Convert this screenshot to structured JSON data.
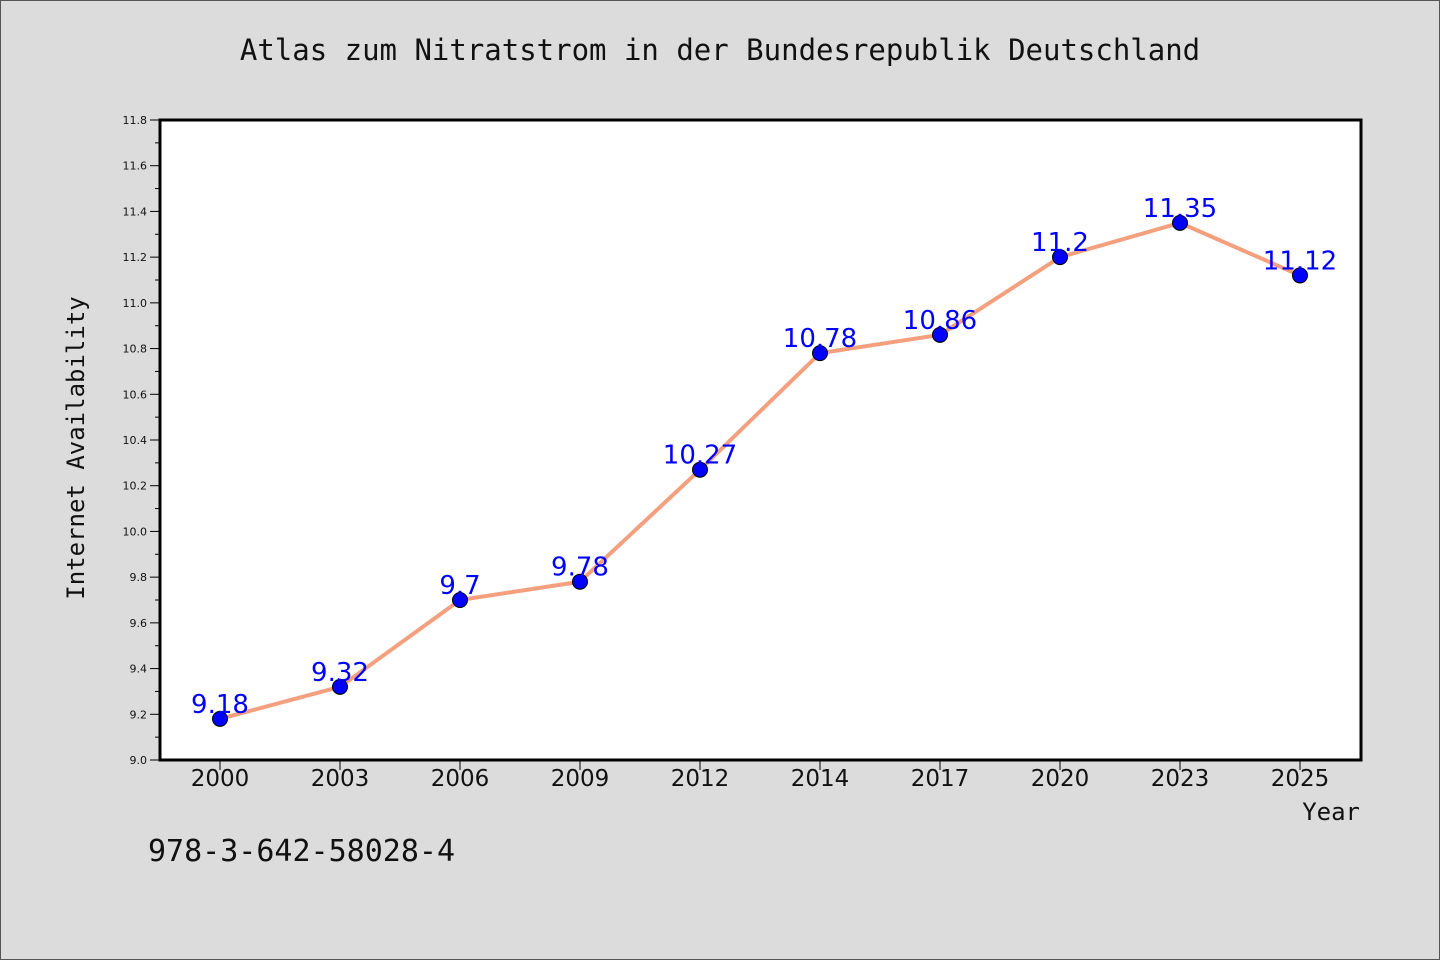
{
  "page": {
    "title": "Atlas zum Nitratstrom in der Bundesrepublik Deutschland",
    "footer": "978-3-642-58028-4"
  },
  "chart_data": {
    "type": "line",
    "title": "Atlas zum Nitratstrom in der Bundesrepublik Deutschland",
    "xlabel": "Year",
    "ylabel": "Internet Availability",
    "categories": [
      "2000",
      "2003",
      "2006",
      "2009",
      "2012",
      "2014",
      "2017",
      "2020",
      "2023",
      "2025"
    ],
    "series": [
      {
        "values": [
          9.18,
          9.32,
          9.7,
          9.78,
          10.27,
          10.78,
          10.86,
          11.2,
          11.35,
          11.12
        ],
        "data_labels": [
          "9.18",
          "9.32",
          "9.7",
          "9.78",
          "10.27",
          "10.78",
          "10.86",
          "11.2",
          "11.35",
          "11.12"
        ]
      }
    ],
    "ylim": [
      9.0,
      11.8
    ],
    "y_ticks": [
      "9.0",
      "9.2",
      "9.4",
      "9.6",
      "9.8",
      "10.0",
      "10.2",
      "10.4",
      "10.6",
      "10.8",
      "11.0",
      "11.2",
      "11.4",
      "11.6",
      "11.8"
    ],
    "grid": false,
    "legend": "none",
    "colors": {
      "line": "#f4a07e",
      "marker": "#0000ff",
      "data_label": "#0000ff",
      "plot_background": "#ffffff",
      "page_background": "#dcdcdc"
    }
  }
}
